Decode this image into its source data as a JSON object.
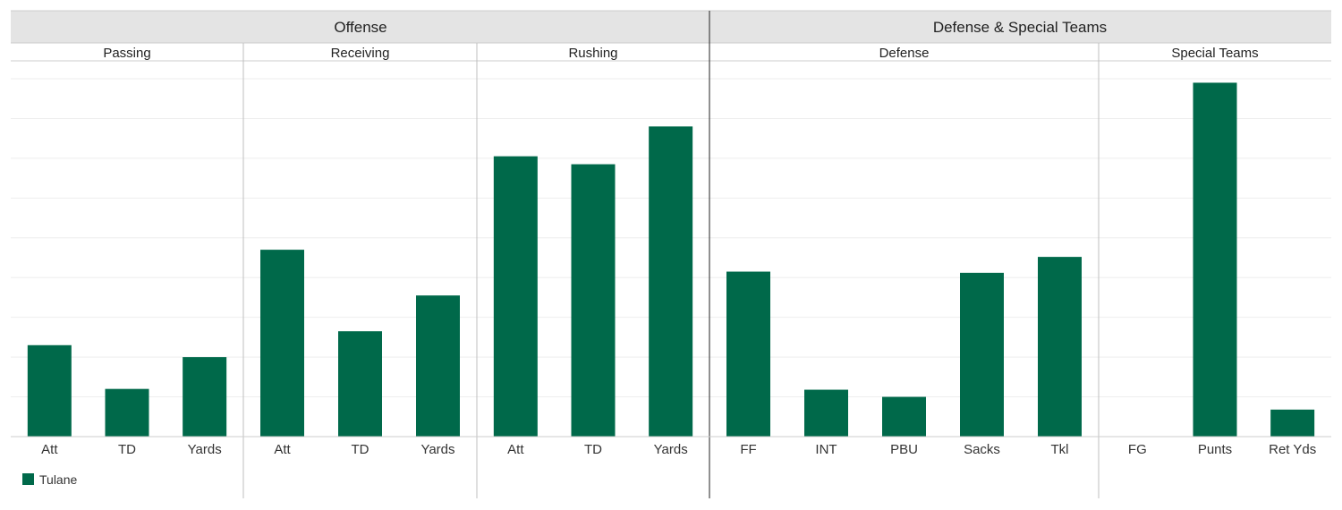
{
  "groups": [
    {
      "title": "Offense"
    },
    {
      "title": "Defense & Special Teams"
    }
  ],
  "legend": {
    "label": "Tulane",
    "color": "#00694A"
  },
  "colors": {
    "bar": "#00694A",
    "header_bg": "#E4E4E4",
    "gridline": "#EEEEEE"
  },
  "chart_data": {
    "type": "bar",
    "ylim": [
      0,
      9
    ],
    "grid": true,
    "legend_position": "bottom-left",
    "panels": [
      {
        "title": "Passing",
        "group": "Offense",
        "categories": [
          "Att",
          "TD",
          "Yards"
        ],
        "values": [
          2.3,
          1.2,
          2.0
        ]
      },
      {
        "title": "Receiving",
        "group": "Offense",
        "categories": [
          "Att",
          "TD",
          "Yards"
        ],
        "values": [
          4.7,
          2.65,
          3.55
        ]
      },
      {
        "title": "Rushing",
        "group": "Offense",
        "categories": [
          "Att",
          "TD",
          "Yards"
        ],
        "values": [
          7.05,
          6.85,
          7.8
        ]
      },
      {
        "title": "Defense",
        "group": "Defense & Special Teams",
        "categories": [
          "FF",
          "INT",
          "PBU",
          "Sacks",
          "Tkl"
        ],
        "values": [
          4.15,
          1.18,
          1.0,
          4.12,
          4.52
        ]
      },
      {
        "title": "Special Teams",
        "group": "Defense & Special Teams",
        "categories": [
          "FG",
          "Punts",
          "Ret Yds"
        ],
        "values": [
          0,
          8.9,
          0.68
        ]
      }
    ],
    "series": [
      {
        "name": "Tulane"
      }
    ]
  }
}
